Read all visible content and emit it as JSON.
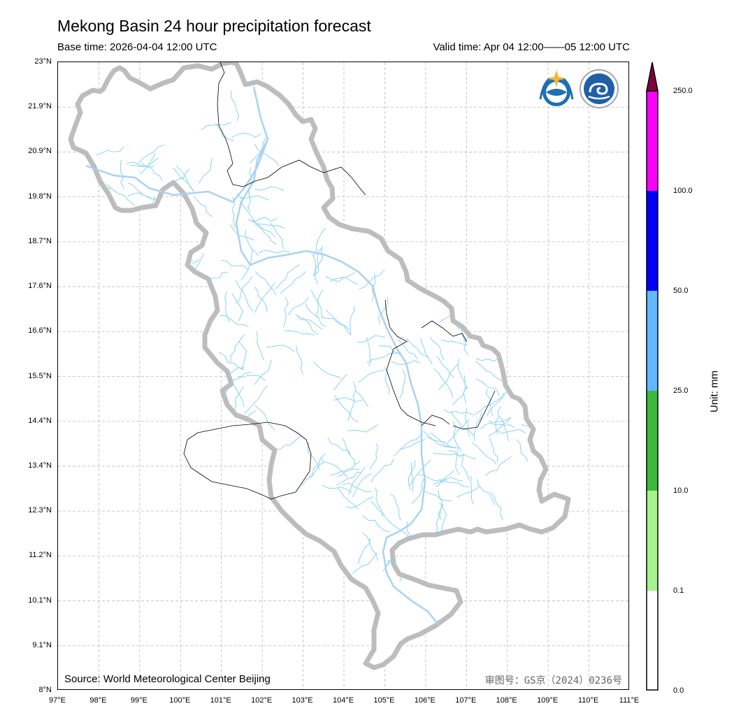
{
  "header": {
    "title": "Mekong Basin 24 hour precipitation forecast",
    "base_time": "Base time: 2026-04-04 12:00 UTC",
    "valid_time": "Valid time: Apr 04 12:00——05 12:00 UTC"
  },
  "map": {
    "y_ticks": [
      "23°N",
      "21.9°N",
      "20.9°N",
      "19.8°N",
      "18.7°N",
      "17.6°N",
      "16.6°N",
      "15.5°N",
      "14.4°N",
      "13.4°N",
      "12.3°N",
      "11.2°N",
      "10.1°N",
      "9.1°N",
      "8°N"
    ],
    "x_ticks": [
      "97°E",
      "98°E",
      "99°E",
      "100°E",
      "101°E",
      "102°E",
      "103°E",
      "104°E",
      "105°E",
      "106°E",
      "107°E",
      "108°E",
      "109°E",
      "110°E",
      "111°E"
    ],
    "lon_range": [
      97,
      111
    ],
    "lat_range": [
      8,
      23
    ],
    "gridlines": true,
    "colors": {
      "basin_border": "#bdbdbd",
      "river": "#87d3f0",
      "main_river": "#a9d2f2",
      "country_border": "#000000"
    }
  },
  "footer": {
    "source": "Source: World Meteorological Center Beijing",
    "approval": "审图号：GS京（2024）0236号"
  },
  "logos": {
    "wmo": "wmo-logo-icon",
    "cma": "cma-logo-icon"
  },
  "colorbar": {
    "levels": [
      "0.0",
      "0.1",
      "10.0",
      "25.0",
      "50.0",
      "100.0",
      "250.0"
    ],
    "colors": [
      "#ffffff",
      "#a6f28f",
      "#3dba3d",
      "#61b8ff",
      "#0000ff",
      "#fa00fa",
      "#800040"
    ],
    "unit": "Unit: mm"
  }
}
